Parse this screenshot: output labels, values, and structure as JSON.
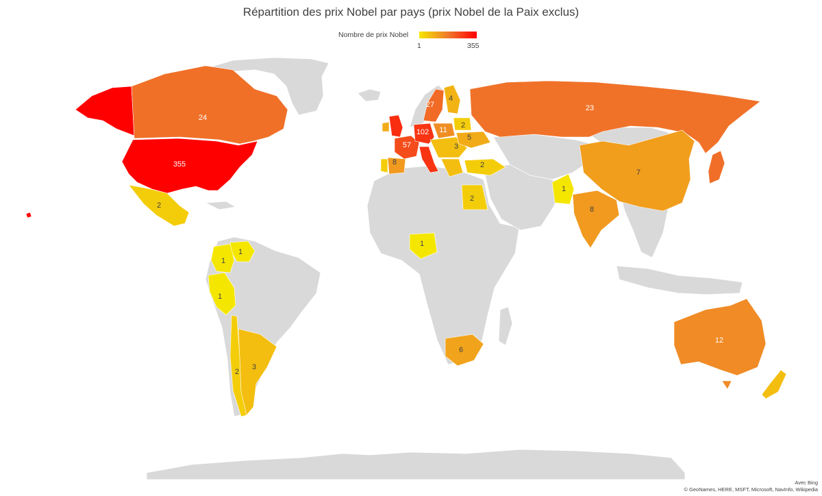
{
  "title": "Répartition des prix Nobel par pays (prix Nobel de la Paix exclus)",
  "legend": {
    "label": "Nombre de prix Nobel",
    "min": "1",
    "max": "355",
    "min_value": 1,
    "max_value": 355,
    "color_low": "#f5e600",
    "color_mid": "#ef7a2c",
    "color_high": "#ff0000"
  },
  "attribution": {
    "line1": "Avec Bing",
    "line2": "© GeoNames, HERE, MSFT, Microsoft, NavInfo, Wikipedia"
  },
  "chart_data": {
    "type": "choropleth",
    "title": "Répartition des prix Nobel par pays (prix Nobel de la Paix exclus)",
    "legend_title": "Nombre de prix Nobel",
    "range": [
      1,
      355
    ],
    "regions": [
      {
        "id": "usa",
        "label": "355",
        "value": 355
      },
      {
        "id": "canada",
        "label": "24",
        "value": 24
      },
      {
        "id": "mexico",
        "label": "2",
        "value": 2
      },
      {
        "id": "venezuela",
        "label": "1",
        "value": 1
      },
      {
        "id": "colombia",
        "label": "1",
        "value": 1
      },
      {
        "id": "peru",
        "label": "1",
        "value": 1
      },
      {
        "id": "chile",
        "label": "2",
        "value": 2
      },
      {
        "id": "argentina",
        "label": "3",
        "value": 3
      },
      {
        "id": "uk",
        "label": "",
        "value": 120
      },
      {
        "id": "ireland",
        "label": "",
        "value": 5
      },
      {
        "id": "france",
        "label": "57",
        "value": 57
      },
      {
        "id": "spain",
        "label": "8",
        "value": 8
      },
      {
        "id": "portugal",
        "label": "",
        "value": 2
      },
      {
        "id": "germany",
        "label": "102",
        "value": 102
      },
      {
        "id": "poland",
        "label": "11",
        "value": 11
      },
      {
        "id": "sweden",
        "label": "27",
        "value": 27
      },
      {
        "id": "finland",
        "label": "4",
        "value": 4
      },
      {
        "id": "baltics",
        "label": "2",
        "value": 2
      },
      {
        "id": "ukraine",
        "label": "5",
        "value": 5
      },
      {
        "id": "hungary",
        "label": "3",
        "value": 3
      },
      {
        "id": "turkey",
        "label": "2",
        "value": 2
      },
      {
        "id": "russia",
        "label": "23",
        "value": 23
      },
      {
        "id": "china",
        "label": "7",
        "value": 7
      },
      {
        "id": "india",
        "label": "8",
        "value": 8
      },
      {
        "id": "pakistan",
        "label": "1",
        "value": 1
      },
      {
        "id": "egypt",
        "label": "2",
        "value": 2
      },
      {
        "id": "nigeria",
        "label": "1",
        "value": 1
      },
      {
        "id": "south_africa",
        "label": "6",
        "value": 6
      },
      {
        "id": "australia",
        "label": "12",
        "value": 12
      },
      {
        "id": "japan",
        "label": "",
        "value": 25
      },
      {
        "id": "new_zealand",
        "label": "",
        "value": 3
      }
    ]
  }
}
